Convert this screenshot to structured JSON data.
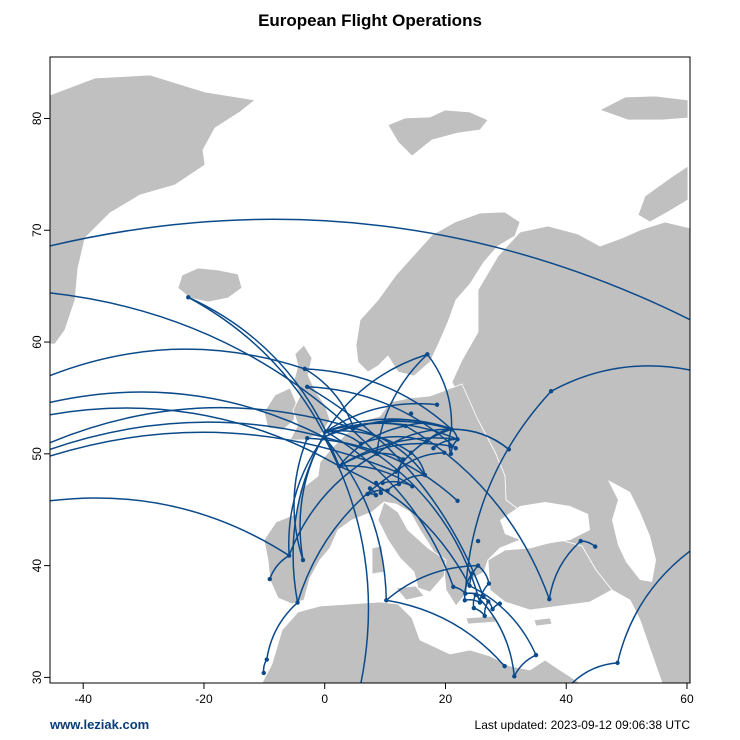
{
  "title": "European Flight Operations",
  "footer": {
    "site": "www.leziak.com",
    "updated": "Last updated: 2023-09-12 09:06:38 UTC"
  },
  "colors": {
    "land": "#c0c0c0",
    "sea": "#ffffff",
    "route": "#0b4a8a",
    "airport": "#0b4a8a"
  },
  "map": {
    "xlim": [
      -45.5,
      60.5
    ],
    "ylim": [
      29.5,
      85.5
    ],
    "x_ticks": [
      -40,
      -20,
      0,
      20,
      40,
      60
    ],
    "y_ticks": [
      30,
      40,
      50,
      60,
      70,
      80
    ]
  },
  "airports": [
    [
      -22.6,
      64.0
    ],
    [
      -3.3,
      57.6
    ],
    [
      -2.9,
      56.0
    ],
    [
      -0.1,
      51.5
    ],
    [
      -2.9,
      51.4
    ],
    [
      0.2,
      52.0
    ],
    [
      2.4,
      48.9
    ],
    [
      4.8,
      52.3
    ],
    [
      6.0,
      50.9
    ],
    [
      8.6,
      50.0
    ],
    [
      11.8,
      48.4
    ],
    [
      13.4,
      52.5
    ],
    [
      14.3,
      53.6
    ],
    [
      17.0,
      58.9
    ],
    [
      18.6,
      54.4
    ],
    [
      21.0,
      52.2
    ],
    [
      22.0,
      51.3
    ],
    [
      20.9,
      50.0
    ],
    [
      19.8,
      50.1
    ],
    [
      21.7,
      50.5
    ],
    [
      16.9,
      51.1
    ],
    [
      18.0,
      50.5
    ],
    [
      14.3,
      50.1
    ],
    [
      13.0,
      49.5
    ],
    [
      16.6,
      48.1
    ],
    [
      12.3,
      47.3
    ],
    [
      9.6,
      47.4
    ],
    [
      8.5,
      47.4
    ],
    [
      10.4,
      46.7
    ],
    [
      7.5,
      46.9
    ],
    [
      8.5,
      46.3
    ],
    [
      7.1,
      46.4
    ],
    [
      9.3,
      46.5
    ],
    [
      14.5,
      47.1
    ],
    [
      22.0,
      45.8
    ],
    [
      25.4,
      42.2
    ],
    [
      -5.9,
      40.9
    ],
    [
      -3.6,
      40.5
    ],
    [
      -4.5,
      36.7
    ],
    [
      -9.1,
      38.8
    ],
    [
      -9.6,
      31.6
    ],
    [
      -10.1,
      30.4
    ],
    [
      10.2,
      36.9
    ],
    [
      20.8,
      50.7
    ],
    [
      24.0,
      38.2
    ],
    [
      25.4,
      40.0
    ],
    [
      24.4,
      39.3
    ],
    [
      27.2,
      38.4
    ],
    [
      21.3,
      38.1
    ],
    [
      23.3,
      37.5
    ],
    [
      25.0,
      37.4
    ],
    [
      25.7,
      36.7
    ],
    [
      26.3,
      37.2
    ],
    [
      27.1,
      36.8
    ],
    [
      24.7,
      36.2
    ],
    [
      23.2,
      36.9
    ],
    [
      27.8,
      36.1
    ],
    [
      29.0,
      36.6
    ],
    [
      26.5,
      35.5
    ],
    [
      35.0,
      32.0
    ],
    [
      31.4,
      30.1
    ],
    [
      29.8,
      31.0
    ],
    [
      37.5,
      55.6
    ],
    [
      30.5,
      50.4
    ],
    [
      42.4,
      42.2
    ],
    [
      44.8,
      41.7
    ],
    [
      37.2,
      37.0
    ],
    [
      48.5,
      31.3
    ]
  ],
  "routes": [
    [
      [
        -22.6,
        64.0
      ],
      [
        2.4,
        48.9
      ]
    ],
    [
      [
        -22.6,
        64.0
      ],
      [
        0.2,
        52.0
      ]
    ],
    [
      [
        -3.3,
        57.6
      ],
      [
        21.0,
        52.2
      ]
    ],
    [
      [
        -3.3,
        57.6
      ],
      [
        4.8,
        52.3
      ]
    ],
    [
      [
        -2.9,
        56.0
      ],
      [
        21.7,
        50.5
      ]
    ],
    [
      [
        -0.1,
        51.5
      ],
      [
        21.0,
        52.2
      ]
    ],
    [
      [
        -0.1,
        51.5
      ],
      [
        -5.9,
        40.9
      ]
    ],
    [
      [
        -0.1,
        51.5
      ],
      [
        13.4,
        52.5
      ]
    ],
    [
      [
        -0.1,
        51.5
      ],
      [
        10.2,
        36.9
      ]
    ],
    [
      [
        -2.9,
        51.4
      ],
      [
        22.0,
        45.8
      ]
    ],
    [
      [
        0.2,
        52.0
      ],
      [
        21.0,
        52.2
      ]
    ],
    [
      [
        0.2,
        52.0
      ],
      [
        -3.6,
        40.5
      ]
    ],
    [
      [
        0.2,
        52.0
      ],
      [
        -4.5,
        36.7
      ]
    ],
    [
      [
        0.2,
        52.0
      ],
      [
        17.0,
        58.9
      ]
    ],
    [
      [
        0.2,
        52.0
      ],
      [
        18.6,
        54.4
      ]
    ],
    [
      [
        0.2,
        52.0
      ],
      [
        22.0,
        51.3
      ]
    ],
    [
      [
        0.2,
        52.0
      ],
      [
        14.3,
        50.1
      ]
    ],
    [
      [
        0.2,
        52.0
      ],
      [
        6.0,
        50.9
      ]
    ],
    [
      [
        2.4,
        48.9
      ],
      [
        22.0,
        51.3
      ]
    ],
    [
      [
        2.4,
        48.9
      ],
      [
        20.8,
        50.7
      ]
    ],
    [
      [
        2.4,
        48.9
      ],
      [
        13.4,
        52.5
      ]
    ],
    [
      [
        2.4,
        48.9
      ],
      [
        24.0,
        38.2
      ]
    ],
    [
      [
        2.4,
        48.9
      ],
      [
        14.5,
        47.1
      ]
    ],
    [
      [
        4.8,
        52.3
      ],
      [
        21.0,
        52.2
      ]
    ],
    [
      [
        4.8,
        52.3
      ],
      [
        16.6,
        48.1
      ]
    ],
    [
      [
        6.0,
        50.9
      ],
      [
        16.9,
        51.1
      ]
    ],
    [
      [
        8.6,
        50.0
      ],
      [
        21.0,
        52.2
      ]
    ],
    [
      [
        8.6,
        50.0
      ],
      [
        13.0,
        49.5
      ]
    ],
    [
      [
        11.8,
        48.4
      ],
      [
        21.0,
        52.2
      ]
    ],
    [
      [
        11.8,
        48.4
      ],
      [
        19.8,
        50.1
      ]
    ],
    [
      [
        13.4,
        52.5
      ],
      [
        21.0,
        52.2
      ]
    ],
    [
      [
        17.0,
        58.9
      ],
      [
        21.0,
        52.2
      ]
    ],
    [
      [
        17.0,
        58.9
      ],
      [
        8.6,
        50.0
      ]
    ],
    [
      [
        21.0,
        52.2
      ],
      [
        22.0,
        51.3
      ]
    ],
    [
      [
        21.0,
        52.2
      ],
      [
        30.5,
        50.4
      ]
    ],
    [
      [
        21.0,
        52.2
      ],
      [
        20.9,
        50.0
      ]
    ],
    [
      [
        22.0,
        51.3
      ],
      [
        18.0,
        50.5
      ]
    ],
    [
      [
        22.0,
        51.3
      ],
      [
        20.9,
        50.0
      ]
    ],
    [
      [
        16.9,
        51.1
      ],
      [
        21.0,
        52.2
      ]
    ],
    [
      [
        14.3,
        50.1
      ],
      [
        16.6,
        48.1
      ]
    ],
    [
      [
        13.0,
        49.5
      ],
      [
        12.3,
        47.3
      ]
    ],
    [
      [
        16.6,
        48.1
      ],
      [
        12.3,
        47.3
      ]
    ],
    [
      [
        12.3,
        47.3
      ],
      [
        10.4,
        46.7
      ]
    ],
    [
      [
        9.6,
        47.4
      ],
      [
        14.5,
        47.1
      ]
    ],
    [
      [
        8.5,
        47.4
      ],
      [
        9.3,
        46.5
      ]
    ],
    [
      [
        8.5,
        46.3
      ],
      [
        7.1,
        46.4
      ]
    ],
    [
      [
        7.5,
        46.9
      ],
      [
        8.5,
        46.3
      ]
    ],
    [
      [
        7.1,
        46.4
      ],
      [
        10.4,
        46.7
      ]
    ],
    [
      [
        -5.9,
        40.9
      ],
      [
        -9.1,
        38.8
      ]
    ],
    [
      [
        -5.9,
        40.9
      ],
      [
        8.6,
        50.0
      ]
    ],
    [
      [
        -3.6,
        40.5
      ],
      [
        -2.9,
        51.4
      ]
    ],
    [
      [
        -4.5,
        36.7
      ],
      [
        11.8,
        48.4
      ]
    ],
    [
      [
        -9.6,
        31.6
      ],
      [
        -10.1,
        30.4
      ]
    ],
    [
      [
        -9.6,
        31.6
      ],
      [
        -4.5,
        36.7
      ]
    ],
    [
      [
        10.2,
        36.9
      ],
      [
        29.8,
        31.0
      ]
    ],
    [
      [
        10.2,
        36.9
      ],
      [
        25.4,
        40.0
      ]
    ],
    [
      [
        -45.5,
        57.0
      ],
      [
        -3.3,
        57.6
      ]
    ],
    [
      [
        -45.5,
        54.6
      ],
      [
        -0.1,
        51.5
      ]
    ],
    [
      [
        -45.5,
        53.5
      ],
      [
        2.4,
        48.9
      ]
    ],
    [
      [
        -45.5,
        51.0
      ],
      [
        4.8,
        52.3
      ]
    ],
    [
      [
        -45.5,
        50.4
      ],
      [
        8.6,
        50.0
      ]
    ],
    [
      [
        -45.5,
        49.8
      ],
      [
        11.8,
        48.4
      ]
    ],
    [
      [
        -45.5,
        45.8
      ],
      [
        -5.9,
        40.9
      ]
    ],
    [
      [
        -45.5,
        64.4
      ],
      [
        8.6,
        50.0
      ]
    ],
    [
      [
        -45.5,
        68.6
      ],
      [
        60.5,
        62.0
      ]
    ],
    [
      [
        -0.1,
        51.5
      ],
      [
        6.0,
        29.5
      ]
    ],
    [
      [
        37.5,
        55.6
      ],
      [
        60.5,
        57.5
      ]
    ],
    [
      [
        37.5,
        55.6
      ],
      [
        23.3,
        37.5
      ]
    ],
    [
      [
        30.5,
        50.4
      ],
      [
        21.0,
        52.2
      ]
    ],
    [
      [
        42.4,
        42.2
      ],
      [
        44.8,
        41.7
      ]
    ],
    [
      [
        42.4,
        42.2
      ],
      [
        37.2,
        37.0
      ]
    ],
    [
      [
        37.2,
        37.0
      ],
      [
        13.4,
        52.5
      ]
    ],
    [
      [
        48.5,
        31.3
      ],
      [
        60.5,
        41.3
      ]
    ],
    [
      [
        48.5,
        31.3
      ],
      [
        41.0,
        29.5
      ]
    ],
    [
      [
        35.0,
        32.0
      ],
      [
        24.0,
        38.2
      ]
    ],
    [
      [
        35.0,
        32.0
      ],
      [
        31.4,
        30.1
      ]
    ],
    [
      [
        31.4,
        30.1
      ],
      [
        25.0,
        37.4
      ]
    ],
    [
      [
        24.0,
        38.2
      ],
      [
        25.4,
        40.0
      ]
    ],
    [
      [
        25.4,
        40.0
      ],
      [
        27.2,
        38.4
      ]
    ],
    [
      [
        27.2,
        38.4
      ],
      [
        25.7,
        36.7
      ]
    ],
    [
      [
        24.4,
        39.3
      ],
      [
        23.2,
        36.9
      ]
    ],
    [
      [
        21.3,
        38.1
      ],
      [
        23.3,
        37.5
      ]
    ],
    [
      [
        23.3,
        37.5
      ],
      [
        26.3,
        37.2
      ]
    ],
    [
      [
        26.3,
        37.2
      ],
      [
        27.8,
        36.1
      ]
    ],
    [
      [
        27.8,
        36.1
      ],
      [
        29.0,
        36.6
      ]
    ],
    [
      [
        24.7,
        36.2
      ],
      [
        26.5,
        35.5
      ]
    ],
    [
      [
        26.5,
        35.5
      ],
      [
        27.1,
        36.8
      ]
    ],
    [
      [
        25.0,
        37.4
      ],
      [
        24.7,
        36.2
      ]
    ],
    [
      [
        23.2,
        36.9
      ],
      [
        25.7,
        36.7
      ]
    ],
    [
      [
        21.3,
        38.1
      ],
      [
        0.2,
        52.0
      ]
    ],
    [
      [
        25.7,
        36.7
      ],
      [
        8.6,
        50.0
      ]
    ],
    [
      [
        26.3,
        37.2
      ],
      [
        -2.9,
        56.0
      ]
    ]
  ]
}
